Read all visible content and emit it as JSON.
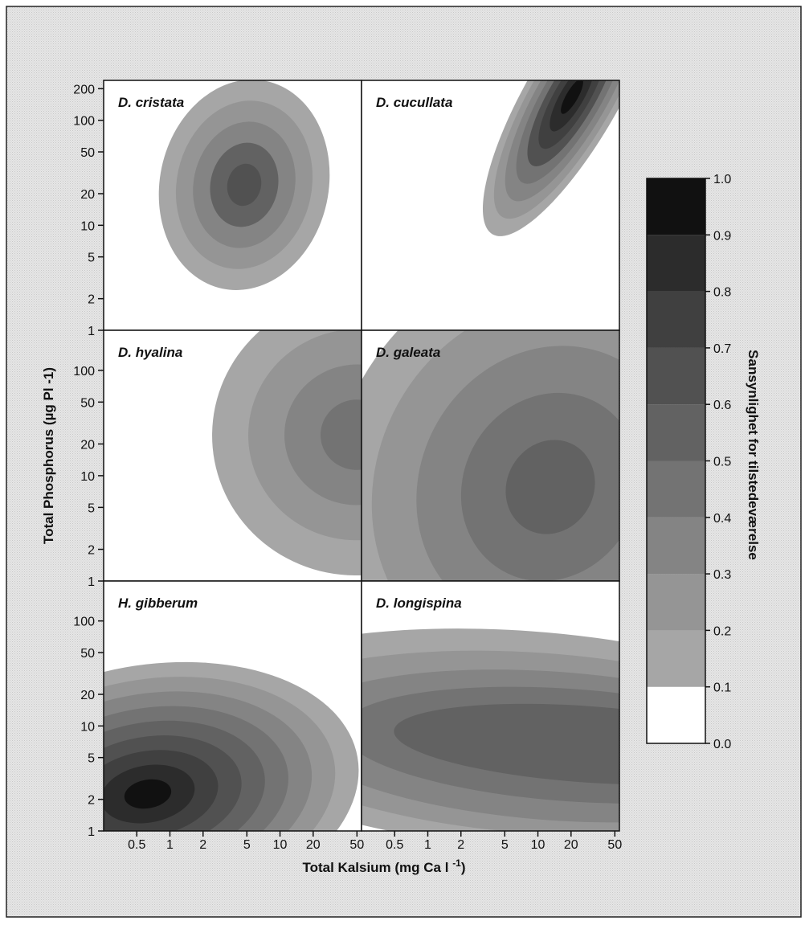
{
  "chart_data": {
    "type": "heatmap",
    "subtype": "filled-contour small multiples",
    "x_axis": {
      "label": "Total Kalsium (mg Ca l -1)",
      "label_main": "Total Kalsium (mg Ca l ",
      "label_sup": "-1",
      "label_close": ")",
      "scale": "log",
      "range": [
        0.25,
        55
      ],
      "ticks": [
        0.5,
        1,
        2,
        5,
        10,
        20,
        50
      ],
      "tick_labels": [
        "0.5",
        "1",
        "2",
        "5",
        "10",
        "20",
        "50"
      ]
    },
    "y_axis": {
      "label": "Total Phosphorus (µg Pl -1)",
      "scale": "log",
      "range": [
        1,
        240
      ],
      "ticks": [
        1,
        2,
        5,
        10,
        20,
        50,
        100,
        200
      ],
      "tick_labels": [
        "1",
        "2",
        "5",
        "10",
        "20",
        "50",
        "100",
        "200"
      ]
    },
    "colorbar": {
      "label": "Sansynlighet for tilstedeværelse",
      "range": [
        0,
        1
      ],
      "ticks": [
        0.0,
        0.1,
        0.2,
        0.3,
        0.4,
        0.5,
        0.6,
        0.7,
        0.8,
        0.9,
        1.0
      ],
      "tick_labels": [
        "0.0",
        "0.1",
        "0.2",
        "0.3",
        "0.4",
        "0.5",
        "0.6",
        "0.7",
        "0.8",
        "0.9",
        "1.0"
      ],
      "levels": [
        {
          "from": 0.0,
          "to": 0.1,
          "color": "#ffffff"
        },
        {
          "from": 0.1,
          "to": 0.2,
          "color": "#a6a6a6"
        },
        {
          "from": 0.2,
          "to": 0.3,
          "color": "#959595"
        },
        {
          "from": 0.3,
          "to": 0.4,
          "color": "#848484"
        },
        {
          "from": 0.4,
          "to": 0.5,
          "color": "#737373"
        },
        {
          "from": 0.5,
          "to": 0.6,
          "color": "#626262"
        },
        {
          "from": 0.6,
          "to": 0.7,
          "color": "#515151"
        },
        {
          "from": 0.7,
          "to": 0.8,
          "color": "#404040"
        },
        {
          "from": 0.8,
          "to": 0.9,
          "color": "#2c2c2c"
        },
        {
          "from": 0.9,
          "to": 1.0,
          "color": "#111111"
        }
      ]
    },
    "panels": [
      {
        "species": "D. cristata",
        "row": 0,
        "col": 0,
        "peak": {
          "calcium": 4,
          "phosphorus": 18,
          "probability": 0.62
        },
        "extent_p01": {
          "calcium": [
            1.1,
            35
          ],
          "phosphorus": [
            2.6,
            140
          ]
        }
      },
      {
        "species": "D. cucullata",
        "row": 0,
        "col": 1,
        "peak": {
          "calcium": 18,
          "phosphorus": 130,
          "probability": 0.97
        },
        "extent_p01": {
          "calcium": [
            4.5,
            55
          ],
          "phosphorus": [
            13,
            240
          ]
        }
      },
      {
        "species": "D. hyalina",
        "row": 1,
        "col": 0,
        "peak": {
          "calcium": 55,
          "phosphorus": 15,
          "probability": 0.5
        },
        "extent_p01": {
          "calcium": [
            3,
            55
          ],
          "phosphorus": [
            2,
            150
          ]
        }
      },
      {
        "species": "D. galeata",
        "row": 1,
        "col": 1,
        "peak": {
          "calcium": 15,
          "phosphorus": 8,
          "probability": 0.58
        },
        "extent_p01": {
          "calcium": [
            0.25,
            55
          ],
          "phosphorus": [
            1,
            240
          ]
        }
      },
      {
        "species": "H. gibberum",
        "row": 2,
        "col": 0,
        "peak": {
          "calcium": 0.5,
          "phosphorus": 2.5,
          "probability": 0.98
        },
        "extent_p01": {
          "calcium": [
            0.25,
            30
          ],
          "phosphorus": [
            1,
            26
          ]
        }
      },
      {
        "species": "D. longispina",
        "row": 2,
        "col": 1,
        "peak": {
          "calcium": 40,
          "phosphorus": 4,
          "probability": 0.55
        },
        "extent_p01": {
          "calcium": [
            0.25,
            55
          ],
          "phosphorus": [
            1,
            70
          ]
        }
      }
    ]
  }
}
